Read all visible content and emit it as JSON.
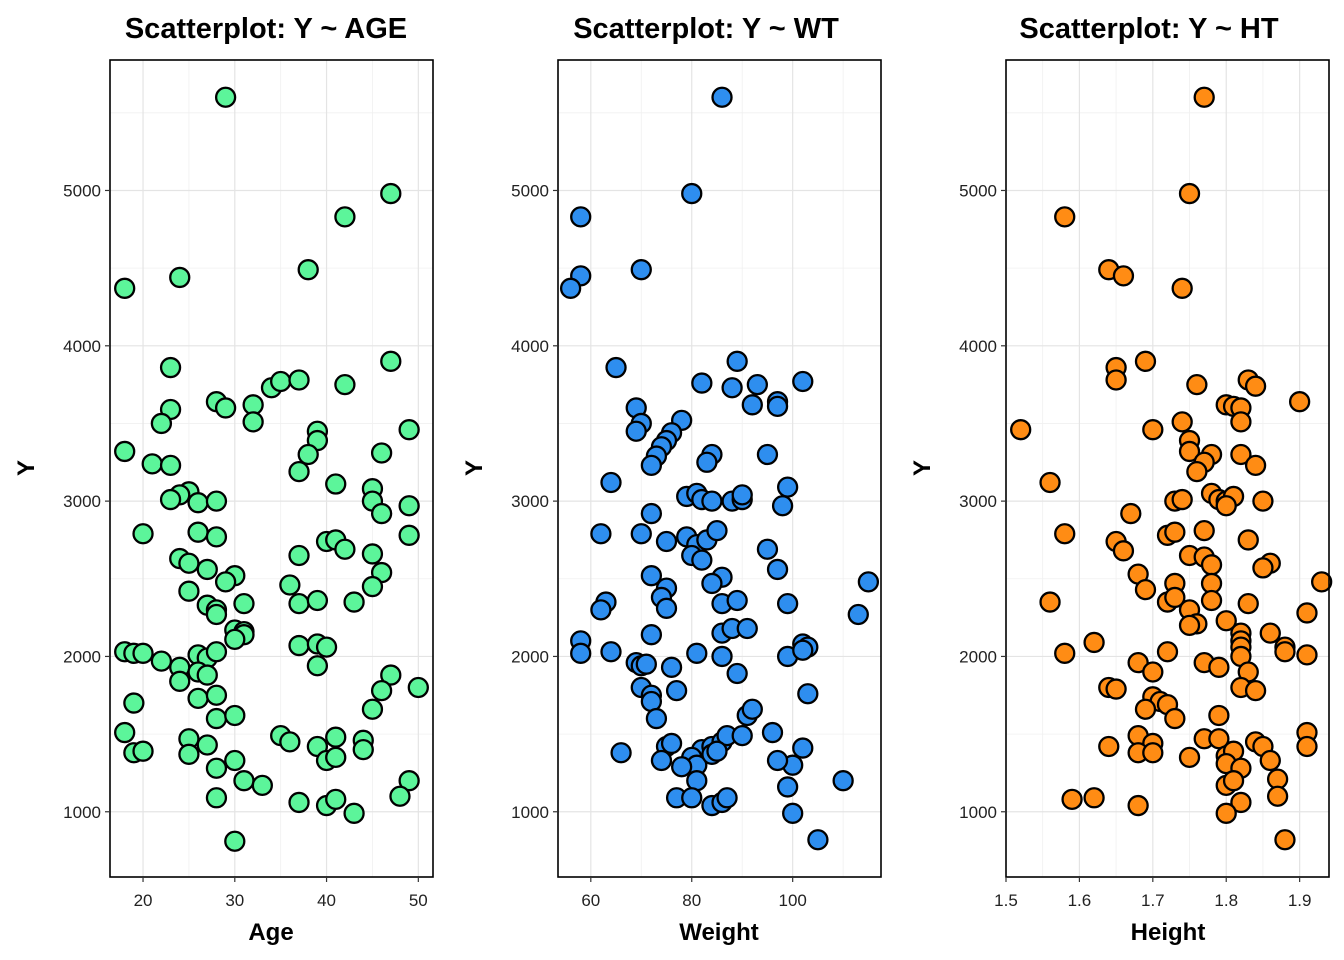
{
  "chart_data": [
    {
      "type": "scatter",
      "title": "Scatterplot: Y ~ AGE",
      "xlabel": "Age",
      "ylabel": "Y",
      "xlim": [
        16.4,
        51.6
      ],
      "ylim": [
        580,
        5840
      ],
      "xticks": [
        20,
        30,
        40,
        50
      ],
      "yticks": [
        1000,
        2000,
        3000,
        4000,
        5000
      ],
      "grid": true,
      "color": "#5cf59a",
      "points": [
        [
          29,
          5600
        ],
        [
          47,
          4980
        ],
        [
          42,
          4830
        ],
        [
          38,
          4490
        ],
        [
          18,
          4370
        ],
        [
          24,
          4440
        ],
        [
          47,
          3900
        ],
        [
          23,
          3860
        ],
        [
          42,
          3750
        ],
        [
          34,
          3730
        ],
        [
          35,
          3770
        ],
        [
          37,
          3780
        ],
        [
          28,
          3640
        ],
        [
          29,
          3600
        ],
        [
          32,
          3620
        ],
        [
          23,
          3590
        ],
        [
          32,
          3510
        ],
        [
          22,
          3500
        ],
        [
          39,
          3450
        ],
        [
          49,
          3460
        ],
        [
          39,
          3390
        ],
        [
          18,
          3320
        ],
        [
          46,
          3310
        ],
        [
          38,
          3300
        ],
        [
          21,
          3240
        ],
        [
          23,
          3230
        ],
        [
          37,
          3190
        ],
        [
          41,
          3110
        ],
        [
          45,
          3080
        ],
        [
          25,
          3060
        ],
        [
          24,
          3040
        ],
        [
          23,
          3010
        ],
        [
          26,
          2990
        ],
        [
          28,
          3000
        ],
        [
          45,
          3000
        ],
        [
          49,
          2970
        ],
        [
          46,
          2920
        ],
        [
          20,
          2790
        ],
        [
          26,
          2800
        ],
        [
          28,
          2770
        ],
        [
          49,
          2780
        ],
        [
          40,
          2740
        ],
        [
          41,
          2750
        ],
        [
          42,
          2690
        ],
        [
          24,
          2630
        ],
        [
          25,
          2600
        ],
        [
          27,
          2560
        ],
        [
          37,
          2650
        ],
        [
          45,
          2660
        ],
        [
          46,
          2540
        ],
        [
          30,
          2520
        ],
        [
          29,
          2480
        ],
        [
          36,
          2460
        ],
        [
          45,
          2450
        ],
        [
          25,
          2420
        ],
        [
          27,
          2330
        ],
        [
          31,
          2340
        ],
        [
          28,
          2300
        ],
        [
          28,
          2270
        ],
        [
          37,
          2340
        ],
        [
          39,
          2360
        ],
        [
          43,
          2350
        ],
        [
          30,
          2170
        ],
        [
          31,
          2160
        ],
        [
          31,
          2140
        ],
        [
          30,
          2110
        ],
        [
          18,
          2030
        ],
        [
          19,
          2020
        ],
        [
          20,
          2020
        ],
        [
          22,
          1970
        ],
        [
          24,
          1930
        ],
        [
          26,
          2010
        ],
        [
          27,
          1990
        ],
        [
          28,
          2030
        ],
        [
          26,
          1900
        ],
        [
          27,
          1880
        ],
        [
          24,
          1840
        ],
        [
          37,
          2070
        ],
        [
          39,
          2080
        ],
        [
          40,
          2060
        ],
        [
          39,
          1940
        ],
        [
          47,
          1880
        ],
        [
          50,
          1800
        ],
        [
          46,
          1780
        ],
        [
          26,
          1730
        ],
        [
          28,
          1750
        ],
        [
          19,
          1700
        ],
        [
          45,
          1660
        ],
        [
          28,
          1600
        ],
        [
          30,
          1620
        ],
        [
          18,
          1510
        ],
        [
          25,
          1470
        ],
        [
          27,
          1430
        ],
        [
          35,
          1490
        ],
        [
          36,
          1450
        ],
        [
          41,
          1480
        ],
        [
          44,
          1460
        ],
        [
          19,
          1380
        ],
        [
          20,
          1390
        ],
        [
          25,
          1370
        ],
        [
          39,
          1420
        ],
        [
          40,
          1330
        ],
        [
          41,
          1350
        ],
        [
          44,
          1400
        ],
        [
          30,
          1330
        ],
        [
          28,
          1280
        ],
        [
          31,
          1200
        ],
        [
          33,
          1170
        ],
        [
          49,
          1200
        ],
        [
          28,
          1090
        ],
        [
          37,
          1060
        ],
        [
          40,
          1040
        ],
        [
          41,
          1080
        ],
        [
          43,
          990
        ],
        [
          48,
          1100
        ],
        [
          30,
          810
        ]
      ]
    },
    {
      "type": "scatter",
      "title": "Scatterplot: Y ~ WT",
      "xlabel": "Weight",
      "ylabel": "Y",
      "xlim": [
        53.5,
        117.5
      ],
      "ylim": [
        580,
        5840
      ],
      "xticks": [
        60,
        80,
        100
      ],
      "yticks": [
        1000,
        2000,
        3000,
        4000,
        5000
      ],
      "grid": true,
      "color": "#2e8eef",
      "points": [
        [
          86,
          5600
        ],
        [
          80,
          4980
        ],
        [
          58,
          4830
        ],
        [
          70,
          4490
        ],
        [
          58,
          4450
        ],
        [
          56,
          4370
        ],
        [
          89,
          3900
        ],
        [
          65,
          3860
        ],
        [
          102,
          3770
        ],
        [
          82,
          3760
        ],
        [
          88,
          3730
        ],
        [
          93,
          3750
        ],
        [
          97,
          3640
        ],
        [
          97,
          3610
        ],
        [
          92,
          3620
        ],
        [
          69,
          3600
        ],
        [
          70,
          3500
        ],
        [
          69,
          3450
        ],
        [
          78,
          3520
        ],
        [
          76,
          3440
        ],
        [
          75,
          3390
        ],
        [
          74,
          3350
        ],
        [
          84,
          3300
        ],
        [
          95,
          3300
        ],
        [
          73,
          3290
        ],
        [
          83,
          3250
        ],
        [
          72,
          3230
        ],
        [
          99,
          3090
        ],
        [
          64,
          3120
        ],
        [
          79,
          3030
        ],
        [
          81,
          3050
        ],
        [
          82,
          3010
        ],
        [
          84,
          3000
        ],
        [
          88,
          3000
        ],
        [
          90,
          3010
        ],
        [
          90,
          3040
        ],
        [
          98,
          2970
        ],
        [
          72,
          2920
        ],
        [
          62,
          2790
        ],
        [
          70,
          2790
        ],
        [
          79,
          2770
        ],
        [
          81,
          2720
        ],
        [
          83,
          2750
        ],
        [
          85,
          2810
        ],
        [
          75,
          2740
        ],
        [
          95,
          2690
        ],
        [
          80,
          2650
        ],
        [
          82,
          2620
        ],
        [
          86,
          2510
        ],
        [
          72,
          2520
        ],
        [
          84,
          2470
        ],
        [
          97,
          2560
        ],
        [
          75,
          2440
        ],
        [
          74,
          2380
        ],
        [
          63,
          2350
        ],
        [
          62,
          2300
        ],
        [
          75,
          2310
        ],
        [
          86,
          2340
        ],
        [
          89,
          2360
        ],
        [
          99,
          2340
        ],
        [
          115,
          2480
        ],
        [
          113,
          2270
        ],
        [
          86,
          2150
        ],
        [
          88,
          2180
        ],
        [
          91,
          2180
        ],
        [
          72,
          2140
        ],
        [
          58,
          2100
        ],
        [
          58,
          2020
        ],
        [
          64,
          2030
        ],
        [
          69,
          1960
        ],
        [
          70,
          1940
        ],
        [
          71,
          1950
        ],
        [
          76,
          1930
        ],
        [
          81,
          2020
        ],
        [
          86,
          2000
        ],
        [
          99,
          2000
        ],
        [
          102,
          2080
        ],
        [
          103,
          2060
        ],
        [
          102,
          2040
        ],
        [
          70,
          1800
        ],
        [
          72,
          1750
        ],
        [
          72,
          1710
        ],
        [
          77,
          1780
        ],
        [
          89,
          1890
        ],
        [
          91,
          1620
        ],
        [
          92,
          1660
        ],
        [
          103,
          1760
        ],
        [
          73,
          1600
        ],
        [
          75,
          1420
        ],
        [
          76,
          1440
        ],
        [
          82,
          1400
        ],
        [
          84,
          1420
        ],
        [
          86,
          1450
        ],
        [
          87,
          1490
        ],
        [
          90,
          1490
        ],
        [
          96,
          1510
        ],
        [
          66,
          1380
        ],
        [
          74,
          1330
        ],
        [
          80,
          1350
        ],
        [
          81,
          1300
        ],
        [
          84,
          1370
        ],
        [
          85,
          1390
        ],
        [
          100,
          1300
        ],
        [
          102,
          1410
        ],
        [
          78,
          1290
        ],
        [
          97,
          1330
        ],
        [
          81,
          1200
        ],
        [
          110,
          1200
        ],
        [
          77,
          1090
        ],
        [
          80,
          1090
        ],
        [
          84,
          1040
        ],
        [
          86,
          1060
        ],
        [
          87,
          1090
        ],
        [
          99,
          1160
        ],
        [
          100,
          990
        ],
        [
          105,
          820
        ]
      ]
    },
    {
      "type": "scatter",
      "title": "Scatterplot: Y ~ HT",
      "xlabel": "Height",
      "ylabel": "Y",
      "xlim": [
        1.5,
        1.94
      ],
      "ylim": [
        580,
        5840
      ],
      "xticks": [
        1.5,
        1.6,
        1.7,
        1.8,
        1.9
      ],
      "yticks": [
        1000,
        2000,
        3000,
        4000,
        5000
      ],
      "grid": true,
      "color": "#ff8c14",
      "points": [
        [
          1.77,
          5600
        ],
        [
          1.75,
          4980
        ],
        [
          1.58,
          4830
        ],
        [
          1.64,
          4490
        ],
        [
          1.66,
          4450
        ],
        [
          1.74,
          4370
        ],
        [
          1.69,
          3900
        ],
        [
          1.65,
          3860
        ],
        [
          1.76,
          3750
        ],
        [
          1.83,
          3780
        ],
        [
          1.84,
          3740
        ],
        [
          1.65,
          3780
        ],
        [
          1.9,
          3640
        ],
        [
          1.8,
          3620
        ],
        [
          1.81,
          3610
        ],
        [
          1.82,
          3600
        ],
        [
          1.74,
          3510
        ],
        [
          1.82,
          3510
        ],
        [
          1.52,
          3460
        ],
        [
          1.7,
          3460
        ],
        [
          1.75,
          3390
        ],
        [
          1.75,
          3320
        ],
        [
          1.78,
          3300
        ],
        [
          1.82,
          3300
        ],
        [
          1.84,
          3230
        ],
        [
          1.77,
          3250
        ],
        [
          1.76,
          3190
        ],
        [
          1.56,
          3120
        ],
        [
          1.78,
          3050
        ],
        [
          1.79,
          3010
        ],
        [
          1.8,
          3000
        ],
        [
          1.81,
          3030
        ],
        [
          1.85,
          3000
        ],
        [
          1.73,
          3000
        ],
        [
          1.74,
          3010
        ],
        [
          1.8,
          2970
        ],
        [
          1.67,
          2920
        ],
        [
          1.58,
          2790
        ],
        [
          1.72,
          2780
        ],
        [
          1.73,
          2800
        ],
        [
          1.77,
          2810
        ],
        [
          1.83,
          2750
        ],
        [
          1.65,
          2740
        ],
        [
          1.66,
          2680
        ],
        [
          1.75,
          2650
        ],
        [
          1.77,
          2640
        ],
        [
          1.78,
          2590
        ],
        [
          1.86,
          2600
        ],
        [
          1.85,
          2570
        ],
        [
          1.68,
          2530
        ],
        [
          1.78,
          2470
        ],
        [
          1.73,
          2470
        ],
        [
          1.69,
          2430
        ],
        [
          1.93,
          2480
        ],
        [
          1.91,
          2280
        ],
        [
          1.56,
          2350
        ],
        [
          1.72,
          2350
        ],
        [
          1.73,
          2380
        ],
        [
          1.75,
          2300
        ],
        [
          1.78,
          2360
        ],
        [
          1.83,
          2340
        ],
        [
          1.8,
          2230
        ],
        [
          1.76,
          2210
        ],
        [
          1.75,
          2200
        ],
        [
          1.82,
          2150
        ],
        [
          1.82,
          2100
        ],
        [
          1.82,
          2060
        ],
        [
          1.86,
          2150
        ],
        [
          1.88,
          2060
        ],
        [
          1.88,
          2030
        ],
        [
          1.62,
          2090
        ],
        [
          1.58,
          2020
        ],
        [
          1.72,
          2030
        ],
        [
          1.82,
          2000
        ],
        [
          1.68,
          1960
        ],
        [
          1.7,
          1900
        ],
        [
          1.77,
          1960
        ],
        [
          1.79,
          1930
        ],
        [
          1.83,
          1900
        ],
        [
          1.91,
          2010
        ],
        [
          1.64,
          1800
        ],
        [
          1.65,
          1790
        ],
        [
          1.82,
          1800
        ],
        [
          1.84,
          1780
        ],
        [
          1.7,
          1740
        ],
        [
          1.71,
          1710
        ],
        [
          1.69,
          1660
        ],
        [
          1.72,
          1690
        ],
        [
          1.73,
          1600
        ],
        [
          1.79,
          1620
        ],
        [
          1.68,
          1490
        ],
        [
          1.7,
          1440
        ],
        [
          1.77,
          1470
        ],
        [
          1.79,
          1470
        ],
        [
          1.84,
          1450
        ],
        [
          1.85,
          1420
        ],
        [
          1.91,
          1510
        ],
        [
          1.64,
          1420
        ],
        [
          1.68,
          1380
        ],
        [
          1.7,
          1380
        ],
        [
          1.75,
          1350
        ],
        [
          1.8,
          1360
        ],
        [
          1.81,
          1390
        ],
        [
          1.8,
          1310
        ],
        [
          1.86,
          1330
        ],
        [
          1.91,
          1420
        ],
        [
          1.82,
          1280
        ],
        [
          1.87,
          1210
        ],
        [
          1.8,
          1170
        ],
        [
          1.81,
          1200
        ],
        [
          1.59,
          1080
        ],
        [
          1.62,
          1090
        ],
        [
          1.68,
          1040
        ],
        [
          1.82,
          1060
        ],
        [
          1.87,
          1100
        ],
        [
          1.8,
          990
        ],
        [
          1.88,
          820
        ]
      ]
    }
  ]
}
